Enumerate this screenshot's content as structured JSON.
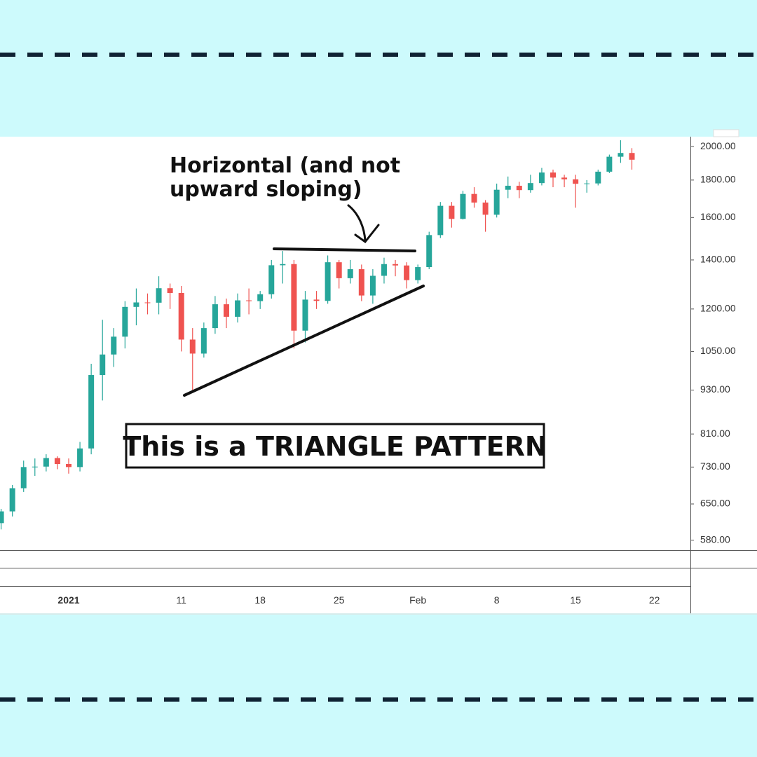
{
  "chart_data": {
    "type": "candlestick",
    "log_scale": true,
    "grid": false,
    "up_color": "#26a69a",
    "down_color": "#ef5350",
    "annotation_text": [
      "Horizontal (and not",
      "upward sloping)"
    ],
    "box_text": "This is a TRIANGLE PATTERN",
    "categories": [
      null,
      null,
      null,
      null,
      null,
      null,
      "2021",
      null,
      null,
      null,
      null,
      null,
      null,
      null,
      null,
      null,
      "11",
      null,
      null,
      null,
      null,
      null,
      null,
      "18",
      null,
      null,
      null,
      null,
      null,
      null,
      "25",
      null,
      null,
      null,
      null,
      null,
      null,
      "Feb",
      null,
      null,
      null,
      null,
      null,
      null,
      "8",
      null,
      null,
      null,
      null,
      null,
      null,
      "15",
      null,
      null,
      null,
      null,
      null,
      null,
      "22"
    ],
    "open": [
      612,
      635,
      683,
      730,
      731,
      751,
      737,
      730,
      774,
      975,
      1040,
      1100,
      1208,
      1225,
      1224,
      1281,
      1262,
      1090,
      1043,
      1130,
      1218,
      1171,
      1233,
      1230,
      1257,
      1377,
      1382,
      1121,
      1236,
      1231,
      1390,
      1322,
      1360,
      1252,
      1332,
      1382,
      1376,
      1314,
      1369,
      1514,
      1660,
      1593,
      1723,
      1677,
      1614,
      1746,
      1768,
      1744,
      1783,
      1843,
      1814,
      1804,
      1779,
      1781,
      1848,
      1937,
      1960,
      null,
      null
    ],
    "high": [
      640,
      690,
      745,
      750,
      760,
      755,
      750,
      790,
      1010,
      1160,
      1130,
      1230,
      1280,
      1260,
      1330,
      1300,
      1290,
      1130,
      1150,
      1250,
      1240,
      1260,
      1280,
      1270,
      1400,
      1440,
      1400,
      1270,
      1270,
      1420,
      1400,
      1400,
      1380,
      1360,
      1410,
      1400,
      1390,
      1380,
      1530,
      1680,
      1680,
      1740,
      1760,
      1690,
      1780,
      1820,
      1790,
      1830,
      1870,
      1860,
      1830,
      1830,
      1800,
      1860,
      1950,
      2040,
      1990,
      null,
      null
    ],
    "low": [
      600,
      625,
      675,
      710,
      720,
      725,
      715,
      720,
      760,
      900,
      1000,
      1060,
      1140,
      1180,
      1180,
      1200,
      1050,
      930,
      1030,
      1110,
      1130,
      1150,
      1180,
      1200,
      1240,
      1300,
      1060,
      1080,
      1200,
      1220,
      1280,
      1300,
      1230,
      1220,
      1300,
      1330,
      1280,
      1300,
      1360,
      1500,
      1550,
      1590,
      1650,
      1530,
      1600,
      1700,
      1700,
      1730,
      1770,
      1760,
      1760,
      1650,
      1730,
      1770,
      1840,
      1900,
      1860,
      null,
      null
    ],
    "close": [
      635,
      683,
      730,
      731,
      751,
      737,
      730,
      774,
      975,
      1040,
      1100,
      1208,
      1225,
      1224,
      1281,
      1262,
      1090,
      1043,
      1130,
      1218,
      1171,
      1233,
      1230,
      1257,
      1377,
      1382,
      1121,
      1236,
      1231,
      1390,
      1322,
      1360,
      1252,
      1332,
      1382,
      1376,
      1314,
      1369,
      1514,
      1660,
      1593,
      1723,
      1677,
      1614,
      1746,
      1768,
      1744,
      1783,
      1843,
      1814,
      1804,
      1779,
      1781,
      1848,
      1937,
      1960,
      1919,
      null,
      null
    ],
    "ylim": [
      562,
      2063
    ],
    "yticks": [
      {
        "value": 2000,
        "label": "2000.00"
      },
      {
        "value": 1800,
        "label": "1800.00"
      },
      {
        "value": 1600,
        "label": "1600.00"
      },
      {
        "value": 1400,
        "label": "1400.00"
      },
      {
        "value": 1200,
        "label": "1200.00"
      },
      {
        "value": 1050,
        "label": "1050.00"
      },
      {
        "value": 930,
        "label": "930.00"
      },
      {
        "value": 810,
        "label": "810.00"
      },
      {
        "value": 730,
        "label": "730.00"
      },
      {
        "value": 650,
        "label": "650.00"
      },
      {
        "value": 580,
        "label": "580.00"
      }
    ]
  }
}
